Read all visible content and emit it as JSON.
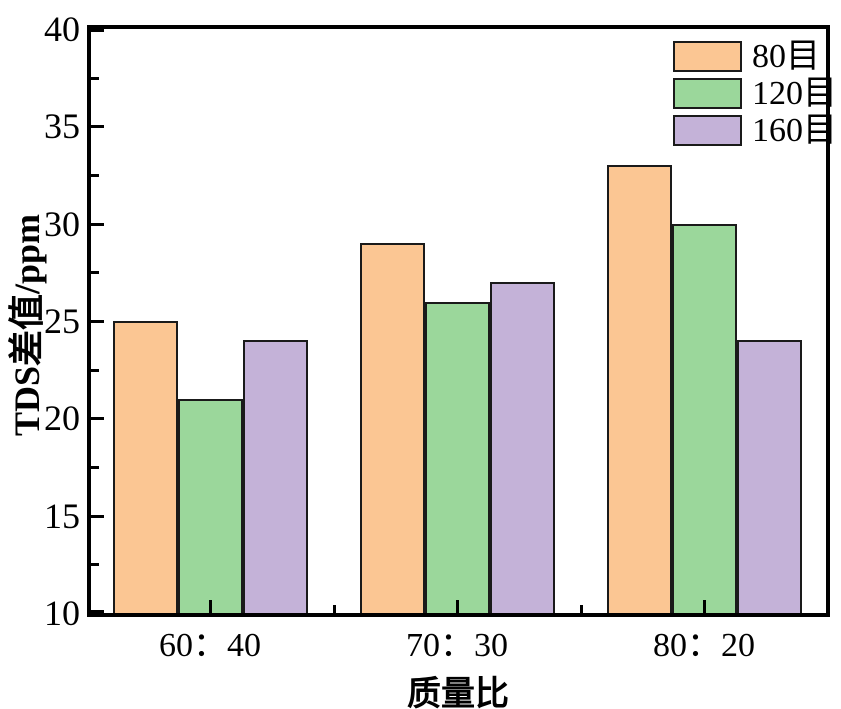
{
  "chart_data": {
    "type": "bar",
    "title": "",
    "xlabel": "质量比",
    "ylabel": "TDS差值/ppm",
    "categories": [
      "60：40",
      "70：30",
      "80：20"
    ],
    "series": [
      {
        "name": "80目",
        "color": "#FBC693",
        "values": [
          25,
          29,
          33
        ]
      },
      {
        "name": "120目",
        "color": "#9BD79B",
        "values": [
          21,
          26,
          30
        ]
      },
      {
        "name": "160目",
        "color": "#C4B2D8",
        "values": [
          24,
          27,
          24
        ]
      }
    ],
    "ylim": [
      10,
      40
    ],
    "yticks": [
      10,
      15,
      20,
      25,
      30,
      35,
      40
    ],
    "minor_ytick_interval": 2.5,
    "grid": false,
    "legend_position": "top-right-inside",
    "bar_edge_color": "#1a1a1a",
    "axis_color": "#000000"
  }
}
